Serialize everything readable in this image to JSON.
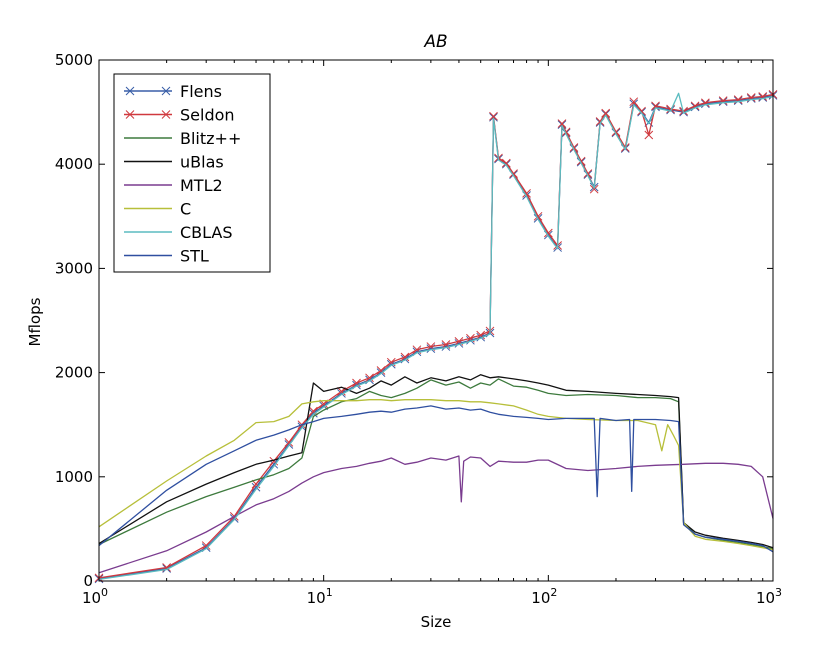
{
  "chart_data": {
    "type": "line",
    "title": "AB",
    "xlabel": "Size",
    "ylabel": "Mflops",
    "x_scale": "log",
    "xlim": [
      1,
      1000
    ],
    "ylim": [
      0,
      5000
    ],
    "x_ticks": [
      {
        "value": 1,
        "base": "10",
        "exp": "0"
      },
      {
        "value": 10,
        "base": "10",
        "exp": "1"
      },
      {
        "value": 100,
        "base": "10",
        "exp": "2"
      },
      {
        "value": 1000,
        "base": "10",
        "exp": "3"
      }
    ],
    "y_ticks": [
      0,
      1000,
      2000,
      3000,
      4000,
      5000
    ],
    "y_tick_labels": [
      "0",
      "1000",
      "2000",
      "3000",
      "4000",
      "5000"
    ],
    "grid": false,
    "legend_position": "top-left",
    "series": [
      {
        "name": "Flens",
        "color": "#3a5fa8",
        "marker": "x",
        "x": [
          1,
          2,
          3,
          4,
          5,
          6,
          7,
          8,
          9,
          10,
          12,
          14,
          16,
          18,
          20,
          23,
          26,
          30,
          35,
          40,
          45,
          50,
          55,
          57,
          60,
          65,
          70,
          80,
          90,
          100,
          110,
          115,
          120,
          130,
          140,
          150,
          160,
          170,
          180,
          200,
          220,
          240,
          260,
          280,
          300,
          350,
          400,
          450,
          500,
          600,
          700,
          800,
          900,
          1000
        ],
        "y": [
          20,
          120,
          320,
          600,
          900,
          1120,
          1310,
          1480,
          1610,
          1680,
          1800,
          1880,
          1930,
          2000,
          2080,
          2130,
          2200,
          2230,
          2250,
          2280,
          2310,
          2340,
          2380,
          4450,
          4050,
          4000,
          3900,
          3700,
          3480,
          3320,
          3200,
          4380,
          4300,
          4150,
          4020,
          3900,
          3780,
          4400,
          4480,
          4300,
          4150,
          4580,
          4500,
          4400,
          4550,
          4520,
          4500,
          4550,
          4580,
          4600,
          4610,
          4630,
          4640,
          4660
        ]
      },
      {
        "name": "Seldon",
        "color": "#d0393e",
        "marker": "x",
        "x": [
          1,
          2,
          3,
          4,
          5,
          6,
          7,
          8,
          9,
          10,
          12,
          14,
          16,
          18,
          20,
          23,
          26,
          30,
          35,
          40,
          45,
          50,
          55,
          57,
          60,
          65,
          70,
          80,
          90,
          100,
          110,
          115,
          120,
          130,
          140,
          150,
          160,
          170,
          180,
          200,
          220,
          240,
          260,
          280,
          300,
          350,
          400,
          450,
          500,
          600,
          700,
          800,
          900,
          1000
        ],
        "y": [
          30,
          130,
          340,
          620,
          930,
          1150,
          1330,
          1500,
          1630,
          1700,
          1820,
          1900,
          1950,
          2020,
          2100,
          2150,
          2220,
          2250,
          2270,
          2300,
          2330,
          2360,
          2400,
          4460,
          4060,
          4010,
          3910,
          3720,
          3500,
          3340,
          3220,
          4390,
          4310,
          4160,
          4030,
          3910,
          3760,
          4410,
          4490,
          4310,
          4160,
          4600,
          4510,
          4280,
          4560,
          4530,
          4510,
          4560,
          4590,
          4610,
          4620,
          4640,
          4650,
          4670
        ]
      },
      {
        "name": "Blitz++",
        "color": "#3d7a3d",
        "marker": "",
        "x": [
          1,
          2,
          3,
          4,
          5,
          6,
          7,
          8,
          9,
          10,
          12,
          14,
          16,
          18,
          20,
          23,
          26,
          30,
          35,
          40,
          45,
          50,
          55,
          60,
          70,
          80,
          90,
          100,
          120,
          150,
          200,
          250,
          300,
          350,
          380,
          400,
          450,
          500,
          600,
          700,
          800,
          900,
          1000
        ],
        "y": [
          350,
          660,
          810,
          900,
          970,
          1020,
          1080,
          1180,
          1580,
          1640,
          1720,
          1750,
          1820,
          1780,
          1760,
          1800,
          1850,
          1930,
          1880,
          1910,
          1850,
          1900,
          1880,
          1940,
          1870,
          1860,
          1830,
          1800,
          1780,
          1790,
          1780,
          1760,
          1760,
          1750,
          1720,
          560,
          450,
          420,
          390,
          370,
          350,
          330,
          310
        ]
      },
      {
        "name": "uBlas",
        "color": "#111111",
        "marker": "",
        "x": [
          1,
          2,
          3,
          4,
          5,
          6,
          7,
          8,
          9,
          10,
          12,
          14,
          16,
          18,
          20,
          23,
          26,
          30,
          35,
          40,
          45,
          50,
          55,
          60,
          70,
          80,
          90,
          100,
          120,
          150,
          200,
          250,
          300,
          350,
          380,
          400,
          450,
          500,
          600,
          700,
          800,
          900,
          1000
        ],
        "y": [
          360,
          760,
          930,
          1040,
          1120,
          1160,
          1200,
          1230,
          1900,
          1820,
          1860,
          1800,
          1850,
          1920,
          1880,
          1960,
          1900,
          1950,
          1920,
          1960,
          1930,
          1980,
          1950,
          1960,
          1940,
          1920,
          1900,
          1880,
          1830,
          1820,
          1800,
          1790,
          1780,
          1770,
          1760,
          560,
          470,
          440,
          410,
          390,
          370,
          350,
          320
        ]
      },
      {
        "name": "MTL2",
        "color": "#7a3c8f",
        "marker": "",
        "x": [
          1,
          2,
          3,
          4,
          5,
          6,
          7,
          8,
          9,
          10,
          12,
          14,
          16,
          18,
          20,
          23,
          26,
          30,
          35,
          40,
          41,
          42,
          45,
          50,
          55,
          60,
          70,
          80,
          90,
          100,
          120,
          150,
          200,
          250,
          300,
          400,
          500,
          600,
          700,
          800,
          900,
          1000
        ],
        "y": [
          80,
          290,
          470,
          620,
          730,
          790,
          860,
          940,
          1000,
          1040,
          1080,
          1100,
          1130,
          1150,
          1180,
          1120,
          1140,
          1180,
          1160,
          1200,
          760,
          1150,
          1190,
          1180,
          1100,
          1150,
          1140,
          1140,
          1160,
          1160,
          1080,
          1060,
          1080,
          1100,
          1110,
          1120,
          1130,
          1130,
          1120,
          1100,
          1000,
          600
        ]
      },
      {
        "name": "C",
        "color": "#b7bf3a",
        "marker": "",
        "x": [
          1,
          2,
          3,
          4,
          5,
          6,
          7,
          8,
          9,
          10,
          12,
          14,
          16,
          18,
          20,
          23,
          26,
          30,
          35,
          40,
          45,
          50,
          55,
          60,
          70,
          80,
          90,
          100,
          120,
          150,
          200,
          250,
          300,
          320,
          340,
          360,
          380,
          400,
          450,
          500,
          600,
          700,
          800,
          900,
          1000
        ],
        "y": [
          520,
          960,
          1200,
          1350,
          1520,
          1530,
          1580,
          1700,
          1720,
          1730,
          1730,
          1730,
          1740,
          1740,
          1730,
          1740,
          1740,
          1740,
          1730,
          1730,
          1720,
          1720,
          1710,
          1700,
          1680,
          1640,
          1600,
          1580,
          1560,
          1550,
          1540,
          1540,
          1500,
          1250,
          1500,
          1400,
          1300,
          560,
          430,
          400,
          380,
          360,
          340,
          320,
          300
        ]
      },
      {
        "name": "CBLAS",
        "color": "#5bbcc0",
        "marker": "",
        "x": [
          1,
          2,
          3,
          4,
          5,
          6,
          7,
          8,
          9,
          10,
          12,
          14,
          16,
          18,
          20,
          23,
          26,
          30,
          35,
          40,
          45,
          50,
          55,
          57,
          60,
          65,
          70,
          80,
          90,
          100,
          110,
          115,
          120,
          130,
          140,
          150,
          160,
          170,
          180,
          200,
          220,
          240,
          260,
          280,
          300,
          350,
          380,
          400,
          450,
          500,
          600,
          700,
          800,
          900,
          1000
        ],
        "y": [
          15,
          110,
          310,
          590,
          880,
          1100,
          1300,
          1470,
          1600,
          1670,
          1790,
          1870,
          1920,
          1990,
          2070,
          2120,
          2190,
          2220,
          2240,
          2270,
          2300,
          2330,
          2370,
          4440,
          4040,
          3990,
          3890,
          3690,
          3470,
          3310,
          3190,
          4370,
          4290,
          4140,
          4010,
          3890,
          3770,
          4390,
          4470,
          4290,
          4140,
          4570,
          4490,
          4390,
          4540,
          4510,
          4680,
          4490,
          4540,
          4570,
          4590,
          4600,
          4620,
          4630,
          4650
        ]
      },
      {
        "name": "STL",
        "color": "#2f4fa0",
        "marker": "",
        "x": [
          1,
          2,
          3,
          4,
          5,
          6,
          7,
          8,
          9,
          10,
          12,
          14,
          16,
          18,
          20,
          23,
          26,
          30,
          35,
          40,
          45,
          50,
          55,
          60,
          70,
          80,
          90,
          100,
          120,
          150,
          160,
          165,
          170,
          200,
          230,
          235,
          240,
          300,
          350,
          380,
          400,
          450,
          500,
          600,
          700,
          800,
          900,
          1000
        ],
        "y": [
          340,
          870,
          1120,
          1250,
          1350,
          1400,
          1450,
          1500,
          1530,
          1560,
          1580,
          1600,
          1620,
          1630,
          1620,
          1650,
          1660,
          1680,
          1650,
          1660,
          1640,
          1650,
          1620,
          1600,
          1580,
          1570,
          1560,
          1550,
          1560,
          1560,
          1560,
          810,
          1560,
          1540,
          1550,
          860,
          1550,
          1550,
          1540,
          1530,
          540,
          450,
          420,
          400,
          380,
          360,
          340,
          280
        ]
      }
    ]
  }
}
